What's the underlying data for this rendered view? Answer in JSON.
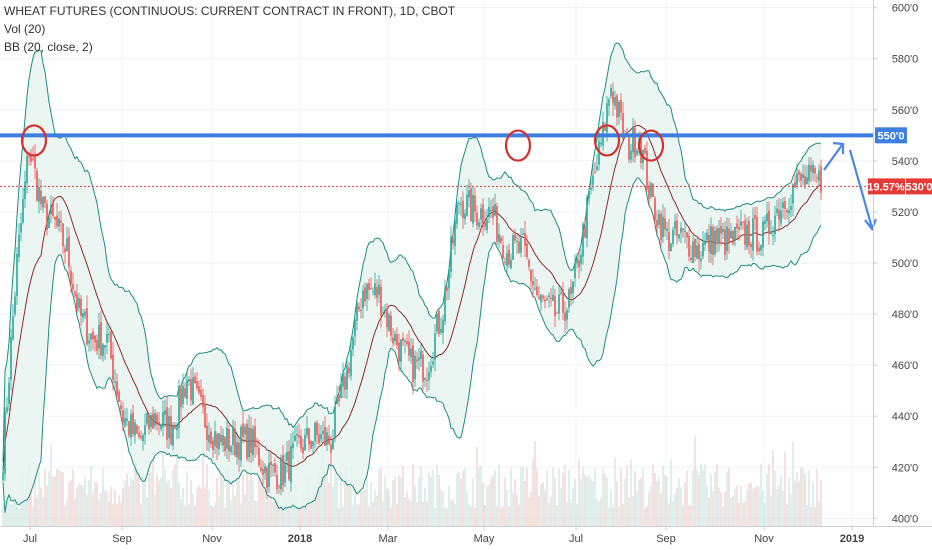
{
  "header": {
    "title": "WHEAT FUTURES (CONTINUOUS: CURRENT CONTRACT IN FRONT), 1D, CBOT",
    "indicator_vol": "Vol (20)",
    "indicator_bb": "BB (20, close, 2)"
  },
  "colors": {
    "up": "#26a69a",
    "down": "#ef5350",
    "bb_band": "#1e8c7e",
    "bb_basis": "#8b2c2c",
    "bb_fill": "#e7f4f1",
    "resistance": "#3d7ee0",
    "current_price": "#e53935",
    "circle": "#d32f2f",
    "arrow": "#4a86e8",
    "axis_text": "#444444"
  },
  "chart_data": {
    "type": "candlestick",
    "xlabels": [
      "Jul",
      "Sep",
      "Nov",
      "2018",
      "Mar",
      "May",
      "Jul",
      "Sep",
      "Nov",
      "2019"
    ],
    "ylabels": [
      "400'0",
      "420'0",
      "440'0",
      "460'0",
      "480'0",
      "500'0",
      "520'0",
      "540'0",
      "560'0",
      "580'0",
      "600'0"
    ],
    "ylim": [
      397,
      603
    ],
    "resistance_label": "550'0",
    "resistance_value": 550,
    "current_price_label": "530'0",
    "current_change_label": "19.57%",
    "current_value": 530,
    "close_path": [
      [
        0,
        425
      ],
      [
        7,
        500
      ],
      [
        13,
        545
      ],
      [
        20,
        520
      ],
      [
        26,
        515
      ],
      [
        32,
        505
      ],
      [
        38,
        480
      ],
      [
        45,
        470
      ],
      [
        52,
        470
      ],
      [
        60,
        440
      ],
      [
        68,
        430
      ],
      [
        76,
        440
      ],
      [
        84,
        435
      ],
      [
        92,
        455
      ],
      [
        100,
        440
      ],
      [
        108,
        430
      ],
      [
        116,
        430
      ],
      [
        124,
        430
      ],
      [
        132,
        418
      ],
      [
        140,
        418
      ],
      [
        148,
        428
      ],
      [
        156,
        432
      ],
      [
        164,
        430
      ],
      [
        172,
        458
      ],
      [
        180,
        490
      ],
      [
        188,
        488
      ],
      [
        196,
        470
      ],
      [
        204,
        460
      ],
      [
        212,
        460
      ],
      [
        220,
        482
      ],
      [
        228,
        525
      ],
      [
        236,
        520
      ],
      [
        244,
        520
      ],
      [
        252,
        505
      ],
      [
        260,
        505
      ],
      [
        268,
        485
      ],
      [
        276,
        480
      ],
      [
        284,
        485
      ],
      [
        292,
        520
      ],
      [
        300,
        550
      ],
      [
        304,
        570
      ],
      [
        312,
        545
      ],
      [
        318,
        550
      ],
      [
        324,
        525
      ],
      [
        332,
        510
      ],
      [
        340,
        510
      ],
      [
        348,
        505
      ],
      [
        356,
        510
      ],
      [
        364,
        508
      ],
      [
        372,
        512
      ],
      [
        380,
        510
      ],
      [
        388,
        522
      ],
      [
        396,
        530
      ],
      [
        399,
        532
      ]
    ],
    "annotations": [
      "circle",
      "circle",
      "circle",
      "circle",
      "arrow-up",
      "arrow-down"
    ]
  }
}
